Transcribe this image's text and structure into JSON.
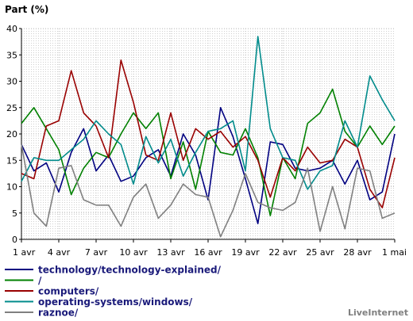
{
  "chart_data": {
    "type": "line",
    "ylabel": "Part (%)",
    "ylim": [
      0,
      40
    ],
    "yticks": [
      0,
      5,
      10,
      15,
      20,
      25,
      30,
      35,
      40
    ],
    "xticks": [
      "1 avr",
      "4 avr",
      "7 avr",
      "10 avr",
      "13 avr",
      "16 avr",
      "19 avr",
      "22 avr",
      "25 avr",
      "28 avr",
      "1 mai"
    ],
    "grid": true,
    "legend_position": "bottom",
    "footer": "LiveInternet",
    "x": [
      "1 avr",
      "2 avr",
      "3 avr",
      "4 avr",
      "5 avr",
      "6 avr",
      "7 avr",
      "8 avr",
      "9 avr",
      "10 avr",
      "11 avr",
      "12 avr",
      "13 avr",
      "14 avr",
      "15 avr",
      "16 avr",
      "17 avr",
      "18 avr",
      "19 avr",
      "20 avr",
      "21 avr",
      "22 avr",
      "23 avr",
      "24 avr",
      "25 avr",
      "26 avr",
      "27 avr",
      "28 avr",
      "29 avr",
      "30 avr",
      "1 mai"
    ],
    "series": [
      {
        "name": "technology/technology-explained/",
        "color": "#000080",
        "values": [
          18,
          13,
          14.5,
          9,
          16.5,
          21,
          13,
          16,
          11,
          12,
          15.5,
          17,
          12,
          20,
          16,
          7.5,
          25,
          19.5,
          11.5,
          3,
          18.5,
          18,
          13.5,
          13,
          13.5,
          15,
          10.5,
          15,
          7.5,
          9,
          20
        ]
      },
      {
        "name": "/",
        "color": "#008000",
        "values": [
          22,
          25,
          21,
          17,
          8.5,
          13.5,
          16.5,
          15.5,
          20,
          24,
          21,
          24,
          11.5,
          18.5,
          9.5,
          20.5,
          16.5,
          16,
          21,
          15.5,
          4.5,
          15.5,
          11.5,
          22,
          24,
          28.5,
          20.5,
          17.5,
          21.5,
          18,
          21.5
        ]
      },
      {
        "name": "computers/",
        "color": "#990000",
        "values": [
          12.5,
          11.5,
          21.5,
          22.5,
          32,
          24,
          21.5,
          15.5,
          34,
          26,
          16,
          15,
          24,
          15,
          21,
          19,
          20.5,
          17.5,
          19.5,
          15,
          8,
          15.5,
          13,
          17.5,
          14.5,
          15,
          19,
          17.5,
          9.5,
          6,
          15.5
        ]
      },
      {
        "name": "operating-systems/windows/",
        "color": "#008b8b",
        "values": [
          11,
          15.5,
          15,
          15,
          17,
          19,
          22.5,
          20,
          18,
          10.5,
          19.5,
          14.5,
          19,
          12,
          16.5,
          20.5,
          21,
          22.5,
          13,
          38.5,
          21,
          15.5,
          15,
          9.5,
          13,
          14,
          22.5,
          17.5,
          31,
          26.5,
          22.5
        ]
      },
      {
        "name": "raznoe/",
        "color": "#808080",
        "values": [
          18,
          5,
          2.5,
          13.5,
          14,
          7.5,
          6.5,
          6.5,
          2.5,
          8,
          10.5,
          4,
          6.5,
          10.5,
          8.5,
          8,
          0.5,
          5.5,
          12.5,
          7,
          6,
          5.5,
          7,
          13.5,
          1.5,
          10,
          2,
          13.5,
          13,
          4,
          5
        ]
      }
    ]
  }
}
